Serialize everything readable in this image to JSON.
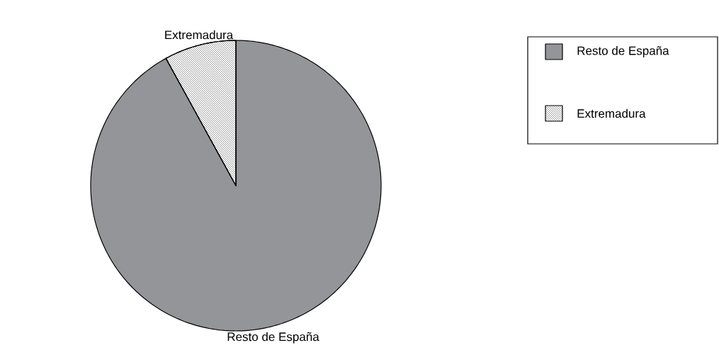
{
  "chart_data": {
    "type": "pie",
    "categories": [
      "Resto de España",
      "Extremadura"
    ],
    "values": [
      92,
      8
    ],
    "colors": [
      "#939598",
      "#ffffff"
    ],
    "legend": "top right"
  }
}
